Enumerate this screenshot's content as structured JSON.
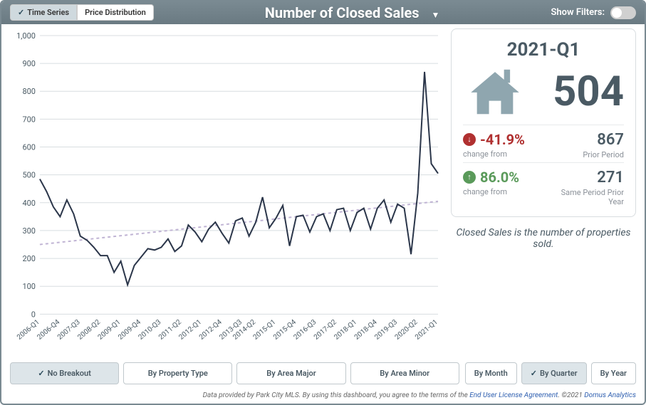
{
  "header": {
    "tabs": [
      {
        "label": "Time Series",
        "active": true
      },
      {
        "label": "Price Distribution",
        "active": false
      }
    ],
    "title": "Number of Closed Sales",
    "show_filters_label": "Show Filters:",
    "filters_on": false
  },
  "chart": {
    "type": "line",
    "ylim": [
      0,
      1000
    ],
    "ytick_step": 100,
    "yticks": [
      0,
      100,
      200,
      300,
      400,
      500,
      600,
      700,
      800,
      900,
      1000
    ],
    "x_labels": [
      "2006-Q1",
      "2006-Q4",
      "2007-Q3",
      "2008-Q2",
      "2009-Q1",
      "2009-Q4",
      "2010-Q3",
      "2011-Q2",
      "2012-Q1",
      "2012-Q4",
      "2013-Q3",
      "2014-Q2",
      "2015-Q1",
      "2015-Q4",
      "2016-Q3",
      "2017-Q2",
      "2018-Q1",
      "2018-Q4",
      "2019-Q3",
      "2020-Q2",
      "2021-Q1"
    ],
    "series": {
      "color": "#2b364a",
      "line_width": 2,
      "values": [
        485,
        440,
        385,
        350,
        410,
        360,
        280,
        265,
        240,
        210,
        210,
        150,
        190,
        105,
        175,
        205,
        235,
        230,
        240,
        270,
        225,
        245,
        320,
        295,
        260,
        305,
        330,
        290,
        255,
        335,
        345,
        280,
        330,
        420,
        310,
        345,
        390,
        245,
        350,
        355,
        295,
        350,
        360,
        300,
        375,
        380,
        300,
        365,
        380,
        305,
        380,
        410,
        330,
        395,
        380,
        215,
        435,
        870,
        540,
        505
      ]
    },
    "trend": {
      "color": "#c0b4d4",
      "dash": "4 4",
      "start_y": 250,
      "end_y": 405
    },
    "background_color": "#ffffff",
    "grid_color": "#d8dde0",
    "axis_fontsize": 11,
    "xlabel_fontsize": 10
  },
  "stats": {
    "period": "2021-Q1",
    "value": "504",
    "icon_color": "#8fa6af",
    "change1": {
      "pct": "-41.9%",
      "direction": "down",
      "label": "change from",
      "compare_value": "867",
      "compare_label": "Prior Period"
    },
    "change2": {
      "pct": "86.0%",
      "direction": "up",
      "label": "change from",
      "compare_value": "271",
      "compare_label": "Same Period Prior Year"
    },
    "description": "Closed Sales is the number of properties sold."
  },
  "breakout_buttons": [
    {
      "label": "No Breakout",
      "active": true
    },
    {
      "label": "By Property Type",
      "active": false
    },
    {
      "label": "By Area Major",
      "active": false
    },
    {
      "label": "By Area Minor",
      "active": false
    }
  ],
  "time_buttons": [
    {
      "label": "By Month",
      "active": false
    },
    {
      "label": "By Quarter",
      "active": true
    },
    {
      "label": "By Year",
      "active": false
    }
  ],
  "footer": {
    "prefix": "Data provided by Park City MLS.  By using this dashboard, you agree to the terms of the ",
    "link1": "End User License Agreement",
    "mid": ".  ©2021 ",
    "link2": "Domus Analytics"
  }
}
